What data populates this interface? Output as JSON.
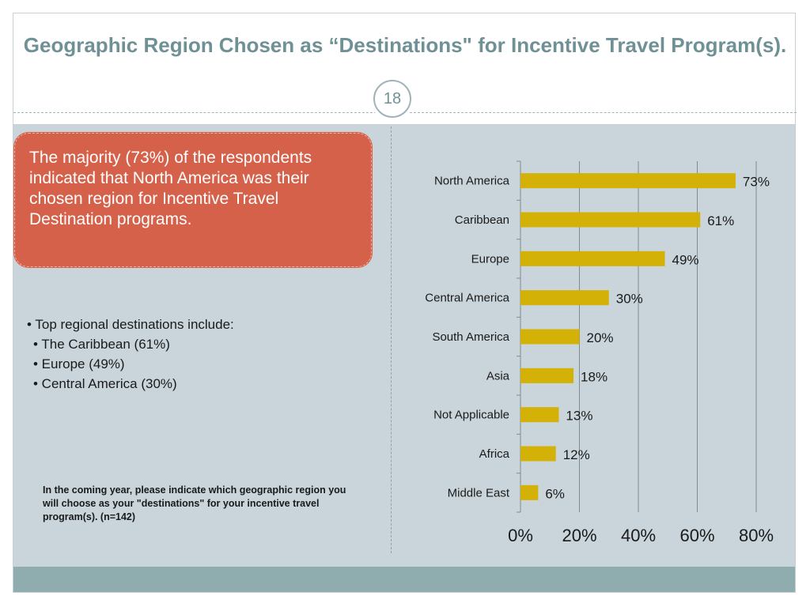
{
  "slide": {
    "title": "Geographic Region Chosen as “Destinations\" for Incentive Travel Program(s).",
    "page_number": "18",
    "callout_text": "The majority (73%) of the respondents indicated that North America was their chosen region for Incentive Travel Destination programs.",
    "bullets": {
      "intro": "• Top regional destinations include:",
      "items": [
        "• The Caribbean (61%)",
        "• Europe (49%)",
        "• Central America (30%)"
      ]
    },
    "footnote": "In the coming year, please indicate which geographic region you will choose as your \"destinations\" for your incentive travel program(s).  (n=142)"
  },
  "colors": {
    "bar": "#d4b106",
    "title": "#6f9196",
    "callout": "#d6614a",
    "content_bg": "#c9d5db",
    "footer_band": "#8fadaf"
  },
  "chart_data": {
    "type": "bar",
    "orientation": "horizontal",
    "categories": [
      "North America",
      "Caribbean",
      "Europe",
      "Central America",
      "South America",
      "Asia",
      "Not Applicable",
      "Africa",
      "Middle East"
    ],
    "values": [
      73,
      61,
      49,
      30,
      20,
      18,
      13,
      12,
      6
    ],
    "value_labels": [
      "73%",
      "61%",
      "49%",
      "30%",
      "20%",
      "18%",
      "13%",
      "12%",
      "6%"
    ],
    "xlim": [
      0,
      80
    ],
    "x_ticks": [
      0,
      20,
      40,
      60,
      80
    ],
    "x_tick_labels": [
      "0%",
      "20%",
      "40%",
      "60%",
      "80%"
    ],
    "grid": true,
    "legend": "none"
  }
}
